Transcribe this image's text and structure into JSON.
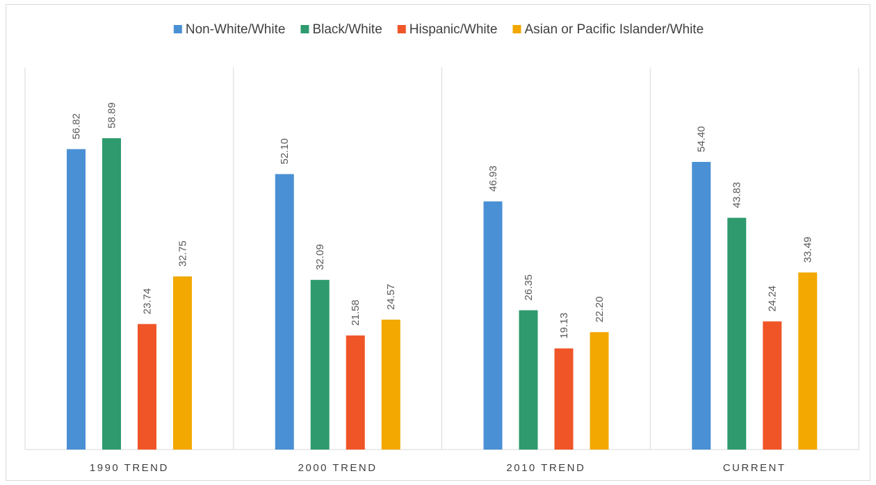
{
  "chart_data": {
    "type": "bar",
    "title": "",
    "xlabel": "",
    "ylabel": "",
    "ylim": [
      0,
      65
    ],
    "grid": false,
    "legend_position": "top",
    "categories": [
      "1990 TREND",
      "2000 TREND",
      "2010 TREND",
      "CURRENT"
    ],
    "series": [
      {
        "name": "Non-White/White",
        "color": "#4a90d4",
        "values": [
          56.82,
          52.1,
          46.93,
          54.4
        ],
        "labels": [
          "56.82",
          "52.10",
          "46.93",
          "54.40"
        ]
      },
      {
        "name": "Black/White",
        "color": "#2e9a6e",
        "values": [
          58.89,
          32.09,
          26.35,
          43.83
        ],
        "labels": [
          "58.89",
          "32.09",
          "26.35",
          "43.83"
        ]
      },
      {
        "name": "Hispanic/White",
        "color": "#f05528",
        "values": [
          23.74,
          21.58,
          19.13,
          24.24
        ],
        "labels": [
          "23.74",
          "21.58",
          "19.13",
          "24.24"
        ]
      },
      {
        "name": "Asian or Pacific Islander/White",
        "color": "#f2a800",
        "values": [
          32.75,
          24.57,
          22.2,
          33.49
        ],
        "labels": [
          "32.75",
          "24.57",
          "22.20",
          "33.49"
        ]
      }
    ]
  }
}
